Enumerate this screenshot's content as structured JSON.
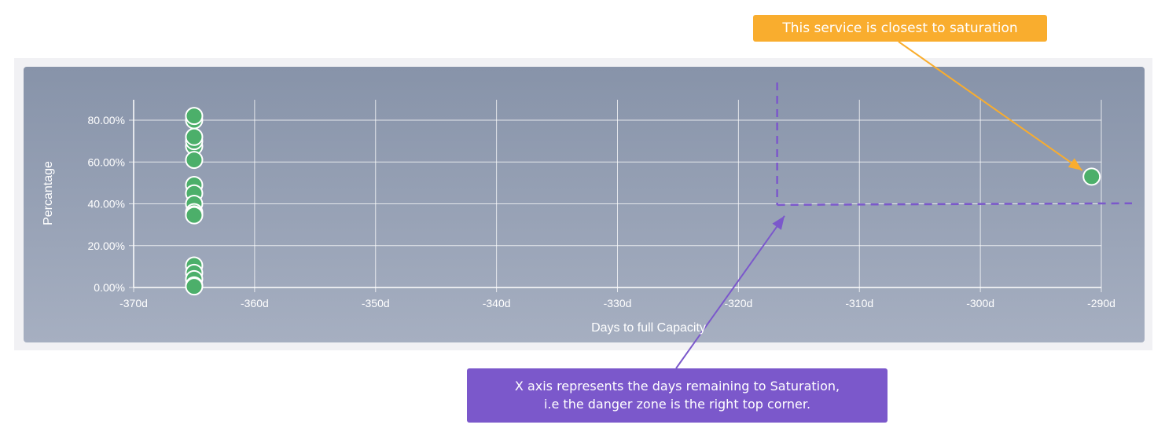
{
  "annotations": {
    "saturation_note": "This service is closest to saturation",
    "axis_note_line1": "X axis represents the days remaining to Saturation,",
    "axis_note_line2": "i.e the danger zone is the right top corner."
  },
  "colors": {
    "panel_top": "#8793a9",
    "panel_bottom": "#a6afc1",
    "point_fill": "#4caf6a",
    "point_stroke": "#ffffff",
    "orange_callout": "#f9ad2e",
    "purple_callout": "#7b58cb",
    "danger_line": "#7b58cb"
  },
  "chart_data": {
    "type": "scatter",
    "title": "",
    "xlabel": "Days to full Capacity",
    "ylabel": "Percantage",
    "xlim": [
      -370,
      -290
    ],
    "ylim": [
      0,
      90
    ],
    "x_ticks": [
      -370,
      -360,
      -350,
      -340,
      -330,
      -320,
      -310,
      -300,
      -290
    ],
    "x_tick_labels": [
      "-370d",
      "-360d",
      "-350d",
      "-340d",
      "-330d",
      "-320d",
      "-310d",
      "-300d",
      "-290d"
    ],
    "y_ticks": [
      0,
      20,
      40,
      60,
      80
    ],
    "y_tick_labels": [
      "0.00%",
      "20.00%",
      "40.00%",
      "60.00%",
      "80.00%"
    ],
    "grid": true,
    "legend": "none",
    "series": [
      {
        "x": [
          -365,
          -365,
          -365,
          -365,
          -365,
          -365,
          -365,
          -365,
          -365,
          -365,
          -365,
          -365,
          -365,
          -365,
          -365,
          -365,
          -365,
          -290.8
        ],
        "y": [
          80,
          82,
          67.5,
          70,
          72,
          61,
          49,
          45,
          40,
          36,
          35,
          34.5,
          10.5,
          7,
          4,
          1,
          0.5,
          53
        ]
      }
    ],
    "danger_zone": {
      "x_threshold": -316.8,
      "y_threshold": 39.5
    }
  }
}
